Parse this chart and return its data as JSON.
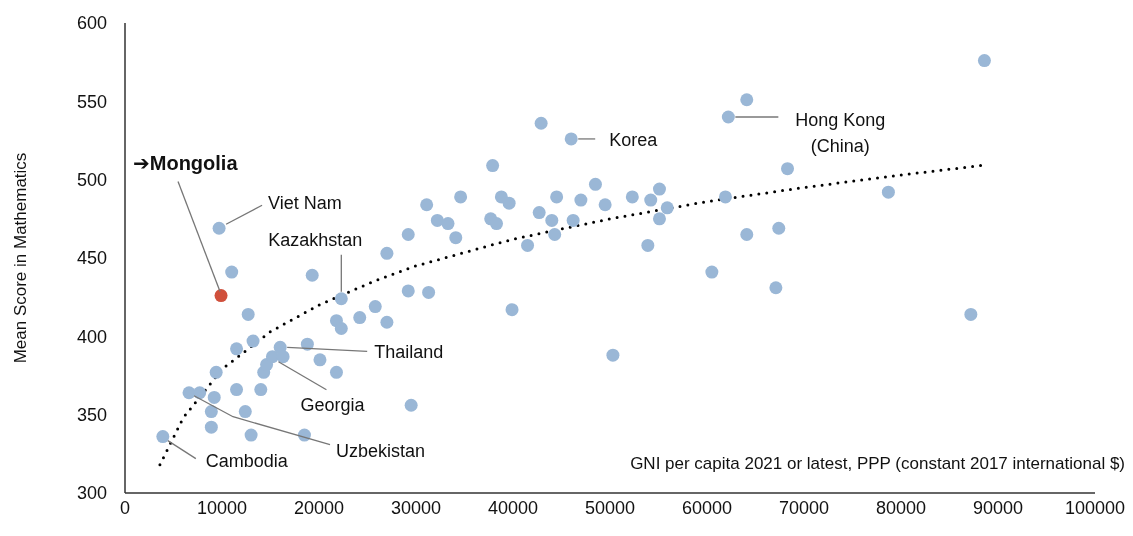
{
  "chart_data": {
    "type": "scatter",
    "xlabel": "GNI per capita 2021 or latest, PPP (constant 2017 international $)",
    "ylabel": "Mean Score in Mathematics",
    "xlim": [
      0,
      100000
    ],
    "xticks": [
      0,
      10000,
      20000,
      30000,
      40000,
      50000,
      60000,
      70000,
      80000,
      90000,
      100000
    ],
    "ylim": [
      300,
      600
    ],
    "yticks": [
      300,
      350,
      400,
      450,
      500,
      550,
      600
    ],
    "marker": "circle",
    "series": [
      {
        "color": "#9ab7d6",
        "x": [
          3900,
          6600,
          7700,
          9200,
          8900,
          8900,
          9400,
          9700,
          11000,
          11500,
          11500,
          12400,
          12700,
          13000,
          13200,
          14000,
          14300,
          14600,
          15200,
          16000,
          16300,
          18500,
          18800,
          20100,
          21800,
          22300,
          19300,
          21800,
          22300,
          24200,
          25800,
          27000,
          29200,
          31300,
          39900,
          29500,
          50300,
          27000,
          29200,
          31100,
          32200,
          33300,
          34100,
          34600,
          37900,
          37700,
          38300,
          38800,
          39600,
          41500,
          42700,
          44000,
          44300,
          44500,
          46200,
          47000,
          48500,
          49500,
          42900,
          46000,
          52300,
          54200,
          55100,
          55900,
          55100,
          53900,
          61900,
          60500,
          64100,
          67400,
          67100,
          68300,
          64100,
          62200,
          78700,
          88600,
          87200
        ],
        "values": [
          336,
          364,
          364,
          361,
          352,
          342,
          377,
          469,
          441,
          392,
          366,
          352,
          414,
          337,
          397,
          366,
          377,
          382,
          387,
          393,
          387,
          337,
          395,
          385,
          377,
          424,
          439,
          410,
          405,
          412,
          419,
          409,
          429,
          428,
          417,
          356,
          388,
          453,
          465,
          484,
          474,
          472,
          463,
          489,
          509,
          475,
          472,
          489,
          485,
          458,
          479,
          474,
          465,
          489,
          474,
          487,
          497,
          484,
          536,
          526,
          489,
          487,
          494,
          482,
          475,
          458,
          489,
          441,
          465,
          469,
          431,
          507,
          551,
          540,
          492,
          576,
          414
        ]
      },
      {
        "color": "#d0503c",
        "x": [
          9900
        ],
        "values": [
          426
        ]
      },
      {
        "type": "line",
        "color": "#000000",
        "line_style": "dotted",
        "marker": "none",
        "x": [
          3600,
          6000,
          10000,
          15000,
          20000,
          25600,
          30000,
          40000,
          50000,
          60000,
          70000,
          80000,
          88200
        ],
        "values": [
          318,
          348,
          379,
          403,
          420,
          435,
          445,
          462,
          475,
          486,
          495,
          503,
          509
        ]
      }
    ],
    "annotations": [
      {
        "text": "➔Mongolia",
        "x": 9900,
        "y": 426
      },
      {
        "text": "Viet Nam",
        "x": 9700,
        "y": 469
      },
      {
        "text": "Kazakhstan",
        "x": 22300,
        "y": 424
      },
      {
        "text": "Thailand",
        "x": 16000,
        "y": 393
      },
      {
        "text": "Georgia",
        "x": 15200,
        "y": 387
      },
      {
        "text": "Uzbekistan",
        "x": 6600,
        "y": 364
      },
      {
        "text": "Cambodia",
        "x": 3900,
        "y": 336
      },
      {
        "text": "Korea",
        "x": 46000,
        "y": 526
      },
      {
        "text": "Hong Kong\n(China)",
        "x": 62200,
        "y": 540
      }
    ]
  }
}
